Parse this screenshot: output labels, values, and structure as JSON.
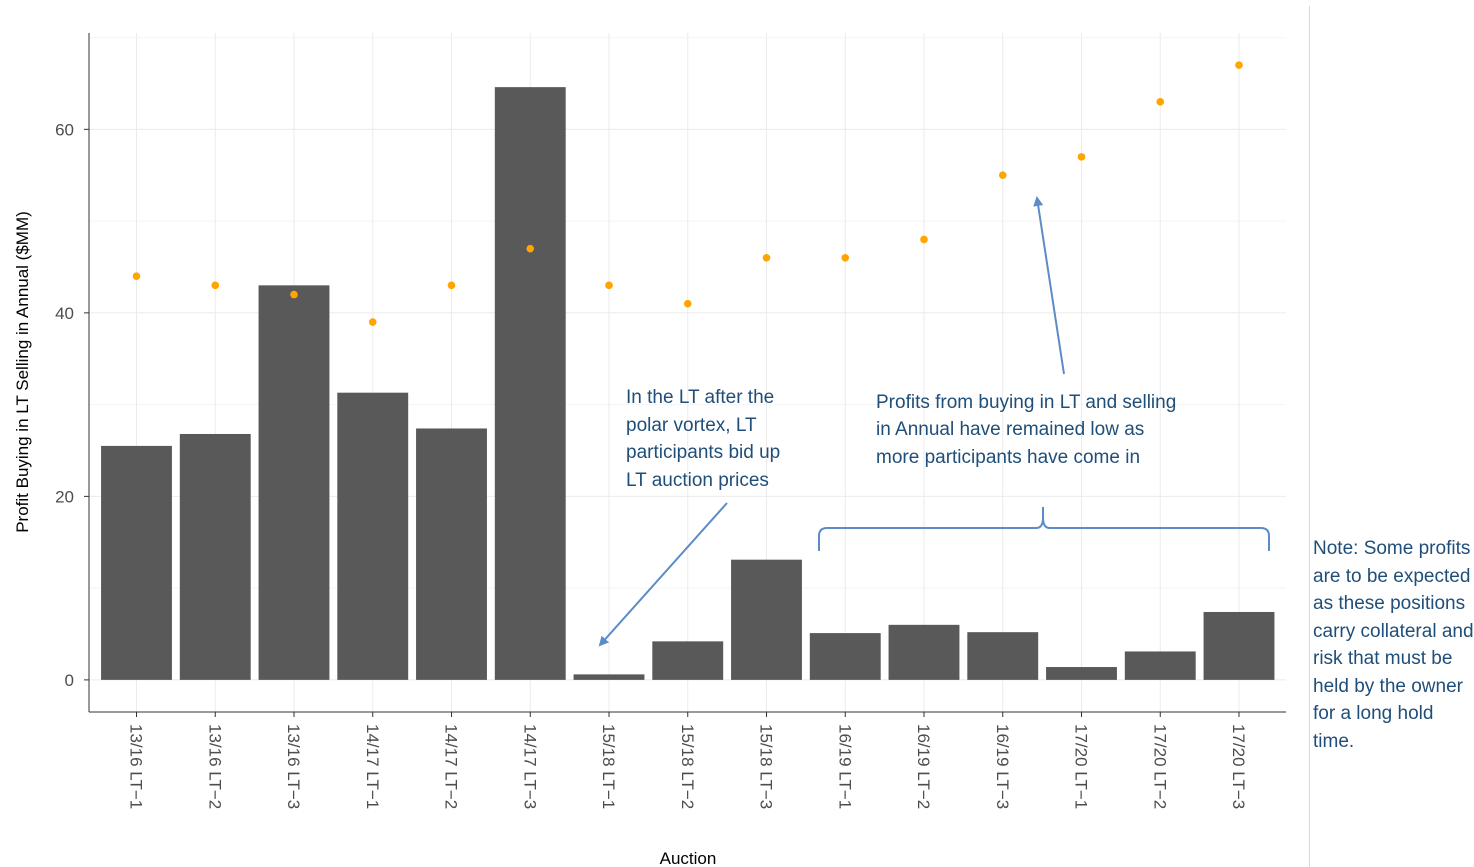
{
  "chart_data": {
    "type": "bar",
    "xlabel": "Auction",
    "ylabel": "Profit Buying in LT Selling in Annual ($MM)",
    "ylim": [
      -3.5,
      70.5
    ],
    "yticks": [
      0,
      20,
      40,
      60
    ],
    "grid": true,
    "categories": [
      "13/16 LT−1",
      "13/16 LT−2",
      "13/16 LT−3",
      "14/17 LT−1",
      "14/17 LT−2",
      "14/17 LT−3",
      "15/18 LT−1",
      "15/18 LT−2",
      "15/18 LT−3",
      "16/19 LT−1",
      "16/19 LT−2",
      "16/19 LT−3",
      "17/20 LT−1",
      "17/20 LT−2",
      "17/20 LT−3"
    ],
    "series": [
      {
        "kind": "bar",
        "color": "#595959",
        "values": [
          25.5,
          26.8,
          43.0,
          31.3,
          27.4,
          64.6,
          0.6,
          4.2,
          13.1,
          5.1,
          6.0,
          5.2,
          1.4,
          3.1,
          7.4
        ]
      },
      {
        "kind": "point",
        "color": "#ffa500",
        "values": [
          44,
          43,
          42,
          39,
          43,
          47,
          43,
          41,
          46,
          46,
          48,
          55,
          57,
          63,
          67
        ]
      }
    ],
    "annotations": [
      {
        "lines": [
          "In the LT after the",
          "polar vortex, LT",
          "participants bid up",
          "LT auction prices"
        ]
      },
      {
        "lines": [
          "Profits from buying in LT and selling",
          "in Annual have remained low as",
          "more participants have come in"
        ]
      }
    ]
  },
  "side_note": "Note: Some profits are to be expected as these positions carry collateral and risk that must be held by the owner for a long hold time.",
  "colors": {
    "annotation": "#1f4e79",
    "arrow": "#5b8cc8"
  }
}
